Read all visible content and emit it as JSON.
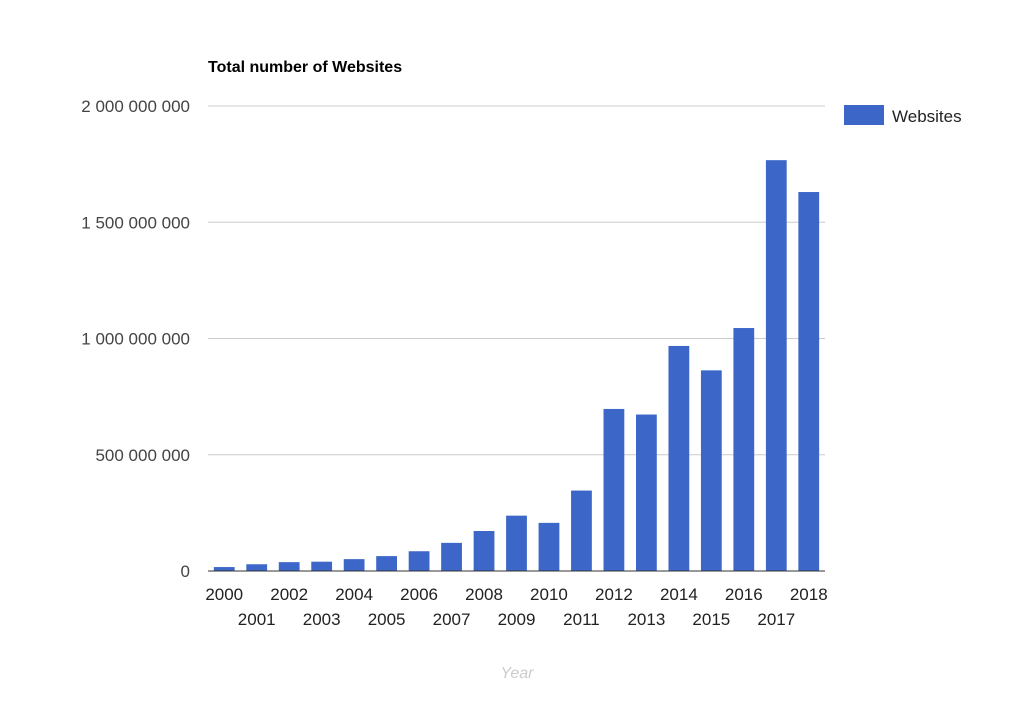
{
  "chart_data": {
    "type": "bar",
    "title": "Total number of Websites",
    "xlabel": "Year",
    "ylabel": "",
    "ylim": [
      0,
      2000000000
    ],
    "y_ticks": [
      0,
      500000000,
      1000000000,
      1500000000,
      2000000000
    ],
    "y_tick_labels": [
      "0",
      "500 000 000",
      "1 000 000 000",
      "1 500 000 000",
      "2 000 000 000"
    ],
    "categories": [
      "2000",
      "2001",
      "2002",
      "2003",
      "2004",
      "2005",
      "2006",
      "2007",
      "2008",
      "2009",
      "2010",
      "2011",
      "2012",
      "2013",
      "2014",
      "2015",
      "2016",
      "2017",
      "2018"
    ],
    "series": [
      {
        "name": "Websites",
        "color": "#3c66c8",
        "values": [
          17000000,
          29000000,
          38000000,
          40000000,
          51000000,
          64000000,
          85000000,
          121000000,
          172000000,
          238000000,
          207000000,
          346000000,
          697000000,
          673000000,
          968000000,
          863000000,
          1045000000,
          1767000000,
          1630000000
        ]
      }
    ],
    "legend_position": "top-right",
    "grid": true,
    "gridline_color": "#cccccc",
    "axis_line_color": "#333333",
    "xlabel_color": "#cccccc"
  }
}
